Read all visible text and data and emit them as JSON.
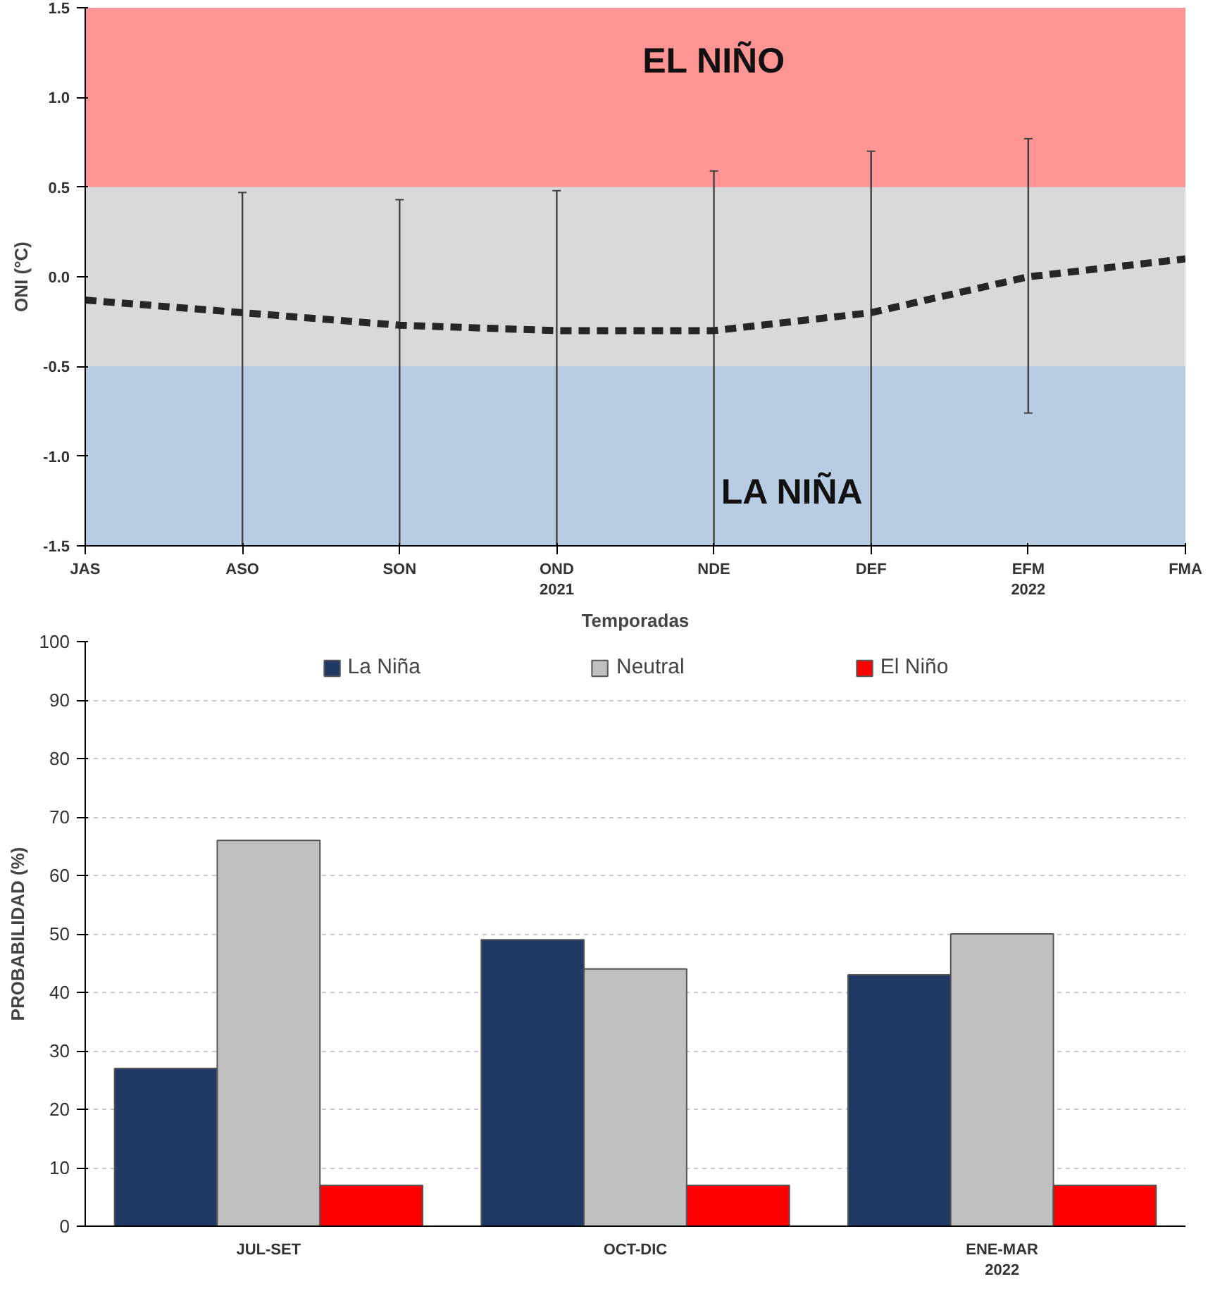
{
  "chart_data": [
    {
      "type": "line",
      "xlabel": "Temporadas",
      "ylabel": "ONI (°C)",
      "categories": [
        "JAS",
        "ASO",
        "SON",
        "OND\n2021",
        "NDE",
        "DEF",
        "EFM\n2022",
        "FMA"
      ],
      "series": [
        {
          "color": "#262626",
          "values": [
            -0.13,
            -0.2,
            -0.27,
            -0.3,
            -0.3,
            -0.2,
            0.0,
            0.1
          ],
          "errors": [
            null,
            [
              -1.5,
              0.47
            ],
            [
              -1.5,
              0.43
            ],
            [
              -1.5,
              0.48
            ],
            [
              -1.5,
              0.59
            ],
            [
              -1.5,
              0.7
            ],
            [
              -0.76,
              0.77
            ],
            null
          ]
        }
      ],
      "line_style": "dashed",
      "marker": "none",
      "ylim": [
        -1.5,
        1.5
      ],
      "yticks": [
        {
          "value": -1.5,
          "label": "-1.5"
        },
        {
          "value": -1.0,
          "label": "-1.0"
        },
        {
          "value": -0.5,
          "label": "-0.5"
        },
        {
          "value": 0.0,
          "label": "0.0"
        },
        {
          "value": 0.5,
          "label": "0.5"
        },
        {
          "value": 1.0,
          "label": "1.0"
        },
        {
          "value": 1.5,
          "label": "1.5"
        }
      ],
      "grid": "y",
      "bands": [
        {
          "axis": "y",
          "from": 0.5,
          "to": 1.5,
          "label": "EL NIÑO",
          "color": "#ff9494"
        },
        {
          "axis": "y",
          "from": -0.5,
          "to": 0.5,
          "label": null,
          "color": "#d9d9d9"
        },
        {
          "axis": "y",
          "from": -1.5,
          "to": -0.5,
          "label": "LA NIÑA",
          "color": "#b8cce4"
        }
      ]
    },
    {
      "type": "bar",
      "ylabel": "PROBABILIDAD (%)",
      "categories": [
        "JUL-SET",
        "OCT-DIC",
        "ENE-MAR\n2022"
      ],
      "series": [
        {
          "name": "La Niña",
          "color": "#1f3864",
          "values": [
            27,
            49,
            43
          ]
        },
        {
          "name": "Neutral",
          "color": "#c0c0c0",
          "values": [
            66,
            44,
            50
          ]
        },
        {
          "name": "El Niño",
          "color": "#ff0000",
          "values": [
            7,
            7,
            7
          ]
        }
      ],
      "ylim": [
        0,
        100
      ],
      "yticks": [
        0,
        10,
        20,
        30,
        40,
        50,
        60,
        70,
        80,
        90,
        100
      ],
      "grid": "y",
      "legend": "top"
    }
  ]
}
